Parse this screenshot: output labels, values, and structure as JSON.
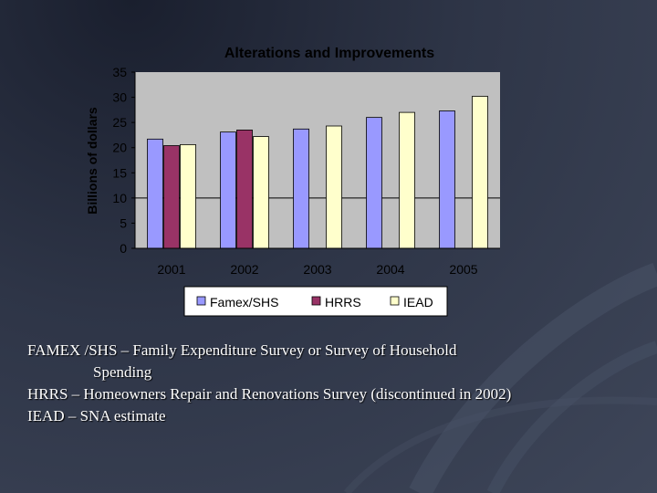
{
  "chart_data": {
    "type": "bar",
    "title": "Alterations and Improvements",
    "xlabel": "",
    "ylabel": "Billions of dollars",
    "ylim": [
      0,
      35
    ],
    "yticks": [
      0,
      5,
      10,
      15,
      20,
      25,
      30,
      35
    ],
    "categories": [
      "2001",
      "2002",
      "2003",
      "2004",
      "2005"
    ],
    "series": [
      {
        "name": "Famex/SHS",
        "color": "#9999ff",
        "values": [
          21.7,
          23.1,
          23.7,
          26.0,
          27.3
        ]
      },
      {
        "name": "HRRS",
        "color": "#993366",
        "values": [
          20.4,
          23.5,
          null,
          null,
          null
        ]
      },
      {
        "name": "IEAD",
        "color": "#ffffcc",
        "values": [
          20.6,
          22.2,
          24.3,
          27.0,
          30.2
        ]
      }
    ],
    "legend": "bottom",
    "plot_background": "#c0c0c0"
  },
  "notes": {
    "famex_line1": "FAMEX /SHS – Family Expenditure Survey or Survey of Household",
    "famex_line2": "Spending",
    "hrrs": "HRRS – Homeowners Repair and Renovations Survey (discontinued in 2002)",
    "iead": "IEAD – SNA estimate"
  }
}
